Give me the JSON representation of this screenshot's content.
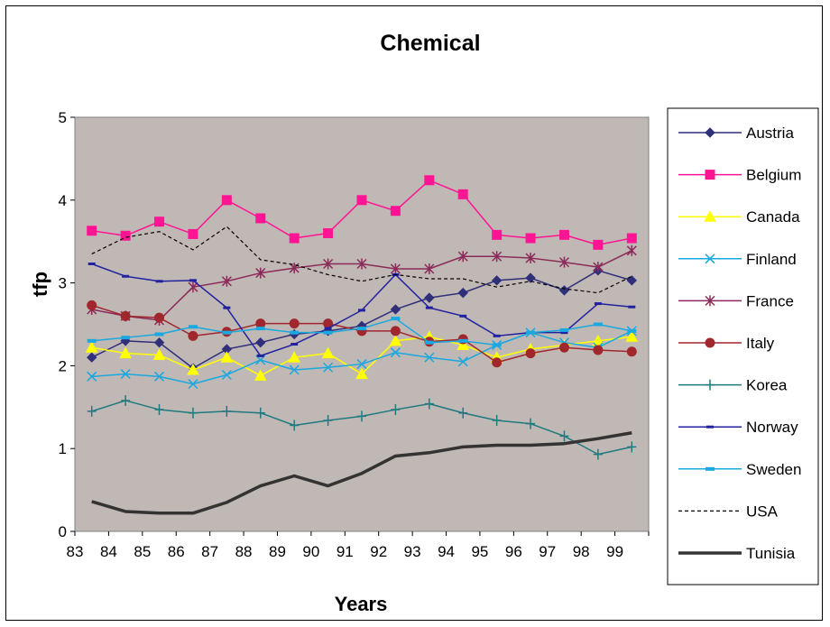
{
  "chart_data": {
    "type": "line",
    "title": "Chemical",
    "xlabel": "Years",
    "ylabel": "tfp",
    "ylim": [
      0,
      5
    ],
    "yticks": [
      "0",
      "1",
      "2",
      "3",
      "4",
      "5"
    ],
    "categories": [
      "83",
      "84",
      "85",
      "86",
      "87",
      "88",
      "89",
      "90",
      "91",
      "92",
      "93",
      "94",
      "95",
      "96",
      "97",
      "98",
      "99"
    ],
    "grid": false,
    "legend_position": "right",
    "plot_background": "#c0b8b4",
    "series": [
      {
        "name": "Austria",
        "color": "#2f2f7a",
        "marker": "diamond",
        "dash": "solid",
        "width": 1.5,
        "values": [
          2.1,
          2.3,
          2.28,
          1.97,
          2.2,
          2.28,
          2.38,
          2.42,
          2.48,
          2.68,
          2.82,
          2.88,
          3.03,
          3.06,
          2.91,
          3.15,
          3.03
        ]
      },
      {
        "name": "Belgium",
        "color": "#ff1493",
        "marker": "square",
        "dash": "solid",
        "width": 1.5,
        "values": [
          3.63,
          3.57,
          3.74,
          3.59,
          4.0,
          3.78,
          3.54,
          3.6,
          4.0,
          3.87,
          4.24,
          4.07,
          3.58,
          3.54,
          3.58,
          3.46,
          3.54
        ]
      },
      {
        "name": "Canada",
        "color": "#ffff00",
        "marker": "triangle",
        "dash": "solid",
        "width": 1.5,
        "values": [
          2.22,
          2.15,
          2.13,
          1.95,
          2.1,
          1.88,
          2.1,
          2.15,
          1.9,
          2.3,
          2.35,
          2.25,
          2.1,
          2.2,
          2.25,
          2.3,
          2.35
        ]
      },
      {
        "name": "Finland",
        "color": "#1aa8e0",
        "marker": "x",
        "dash": "solid",
        "width": 1.5,
        "values": [
          1.87,
          1.9,
          1.87,
          1.78,
          1.89,
          2.07,
          1.95,
          1.98,
          2.02,
          2.16,
          2.1,
          2.05,
          2.25,
          2.4,
          2.28,
          2.22,
          2.42
        ]
      },
      {
        "name": "France",
        "color": "#8b2a5a",
        "marker": "asterisk",
        "dash": "solid",
        "width": 1.5,
        "values": [
          2.68,
          2.6,
          2.55,
          2.95,
          3.02,
          3.12,
          3.18,
          3.23,
          3.23,
          3.17,
          3.17,
          3.32,
          3.32,
          3.3,
          3.25,
          3.19,
          3.39
        ]
      },
      {
        "name": "Italy",
        "color": "#a0272d",
        "marker": "circle",
        "dash": "solid",
        "width": 1.5,
        "values": [
          2.73,
          2.6,
          2.58,
          2.36,
          2.41,
          2.51,
          2.51,
          2.51,
          2.42,
          2.42,
          2.29,
          2.32,
          2.04,
          2.15,
          2.22,
          2.19,
          2.17
        ]
      },
      {
        "name": "Korea",
        "color": "#1f7a80",
        "marker": "plus",
        "dash": "solid",
        "width": 1.5,
        "values": [
          1.45,
          1.58,
          1.47,
          1.43,
          1.45,
          1.43,
          1.28,
          1.34,
          1.39,
          1.47,
          1.54,
          1.43,
          1.34,
          1.3,
          1.15,
          0.93,
          1.02
        ]
      },
      {
        "name": "Norway",
        "color": "#2222a0",
        "marker": "dash",
        "dash": "solid",
        "width": 1.5,
        "values": [
          3.23,
          3.08,
          3.02,
          3.03,
          2.7,
          2.12,
          2.26,
          2.45,
          2.67,
          3.1,
          2.7,
          2.6,
          2.36,
          2.4,
          2.4,
          2.75,
          2.71
        ]
      },
      {
        "name": "Sweden",
        "color": "#1aa8e0",
        "marker": "bar",
        "dash": "solid",
        "width": 1.5,
        "values": [
          2.3,
          2.34,
          2.38,
          2.47,
          2.4,
          2.45,
          2.4,
          2.4,
          2.45,
          2.57,
          2.28,
          2.3,
          2.25,
          2.4,
          2.43,
          2.5,
          2.42
        ]
      },
      {
        "name": "USA",
        "color": "#000000",
        "marker": "none",
        "dash": "dashed",
        "width": 1.2,
        "values": [
          3.35,
          3.55,
          3.62,
          3.4,
          3.68,
          3.28,
          3.22,
          3.1,
          3.02,
          3.1,
          3.05,
          3.05,
          2.95,
          3.02,
          2.93,
          2.88,
          3.08
        ]
      },
      {
        "name": "Tunisia",
        "color": "#333333",
        "marker": "none",
        "dash": "solid",
        "width": 3.5,
        "values": [
          0.36,
          0.24,
          0.22,
          0.22,
          0.35,
          0.55,
          0.67,
          0.55,
          0.7,
          0.91,
          0.95,
          1.02,
          1.04,
          1.04,
          1.06,
          1.12,
          1.19
        ]
      }
    ]
  }
}
